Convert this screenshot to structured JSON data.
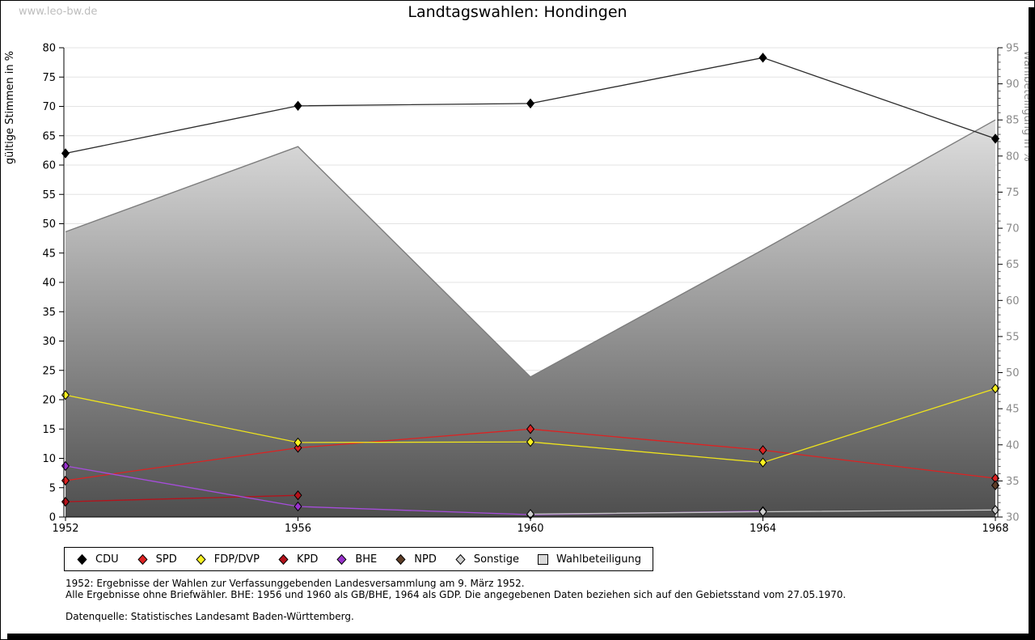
{
  "watermark": "www.leo-bw.de",
  "title": "Landtagswahlen: Hondingen",
  "chart_data": {
    "type": "line",
    "x": [
      1952,
      1956,
      1960,
      1964,
      1968
    ],
    "y_left": {
      "label": "gültige Stimmen in %",
      "min": 0,
      "max": 80,
      "step": 5
    },
    "y_right": {
      "label": "Wahlbeteiligung in %",
      "min": 30,
      "max": 95,
      "step": 5
    },
    "grid": "horizontal-left-ticks",
    "legend_position": "bottom",
    "series": [
      {
        "name": "CDU",
        "color": "#000000",
        "line": "#2b2b2b",
        "values": [
          62.0,
          70.1,
          70.5,
          78.3,
          64.5
        ]
      },
      {
        "name": "SPD",
        "color": "#dd2222",
        "line": "#dd2222",
        "values": [
          6.2,
          11.8,
          15.0,
          11.4,
          6.6
        ]
      },
      {
        "name": "FDP/DVP",
        "color": "#f9f121",
        "line": "#efe41c",
        "values": [
          20.8,
          12.7,
          12.8,
          9.3,
          21.9
        ]
      },
      {
        "name": "KPD",
        "color": "#b5121b",
        "line": "#b5121b",
        "values": [
          2.6,
          3.7,
          null,
          null,
          null
        ]
      },
      {
        "name": "BHE",
        "color": "#9933cc",
        "line": "#a64ddb",
        "values": [
          8.7,
          1.8,
          0.4,
          1.0,
          null
        ]
      },
      {
        "name": "NPD",
        "color": "#5e3d27",
        "line": "#5e3d27",
        "values": [
          null,
          null,
          null,
          null,
          5.4
        ]
      },
      {
        "name": "Sonstige",
        "color": "#cfcfcf",
        "line": "#c4c4c4",
        "values": [
          null,
          null,
          0.5,
          0.9,
          1.2
        ]
      }
    ],
    "participation": {
      "name": "Wahlbeteiligung",
      "axis": "right",
      "values": [
        69.5,
        81.3,
        49.4,
        67.0,
        85.0
      ],
      "fill_top": "#fafafa",
      "fill_bottom": "#4e4e4e",
      "edge": "#7d7d7d",
      "legend_fill": "#d9d9d9"
    }
  },
  "footnotes": {
    "line1": "1952: Ergebnisse der Wahlen zur Verfassunggebenden Landesversammlung am 9. März 1952.",
    "line2": "Alle Ergebnisse ohne Briefwähler. BHE: 1956 und 1960 als GB/BHE, 1964 als GDP. Die angegebenen Daten beziehen sich auf den Gebietsstand vom 27.05.1970.",
    "source": "Datenquelle: Statistisches Landesamt Baden-Württemberg."
  }
}
